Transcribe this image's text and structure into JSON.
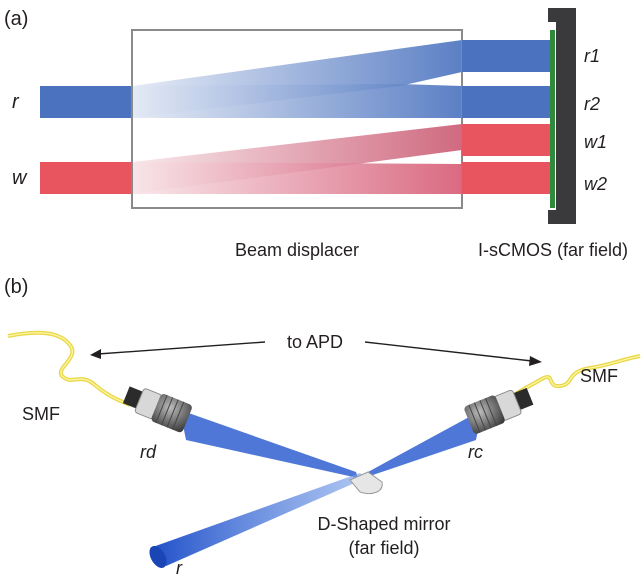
{
  "panel_a": {
    "label": "(a)",
    "input_r": "r",
    "input_w": "w",
    "out_r1": "r1",
    "out_r2": "r2",
    "out_w1": "w1",
    "out_w2": "w2",
    "displacer_label": "Beam displacer",
    "camera_label": "I-sCMOS (far field)",
    "colors": {
      "blue": "#4a72bf",
      "red": "#e8555e",
      "detector": "#3a3a3c",
      "sensor": "#2f8a3c"
    }
  },
  "panel_b": {
    "label": "(b)",
    "to_apd": "to APD",
    "smf_left": "SMF",
    "smf_right": "SMF",
    "rd": "rd",
    "rc": "rc",
    "input_r": "r",
    "mirror_line1": "D-Shaped mirror",
    "mirror_line2": "(far field)",
    "colors": {
      "beam": "#2f5fd0",
      "fiber": "#f0e05a",
      "collimator": "#6a6a6a"
    }
  }
}
